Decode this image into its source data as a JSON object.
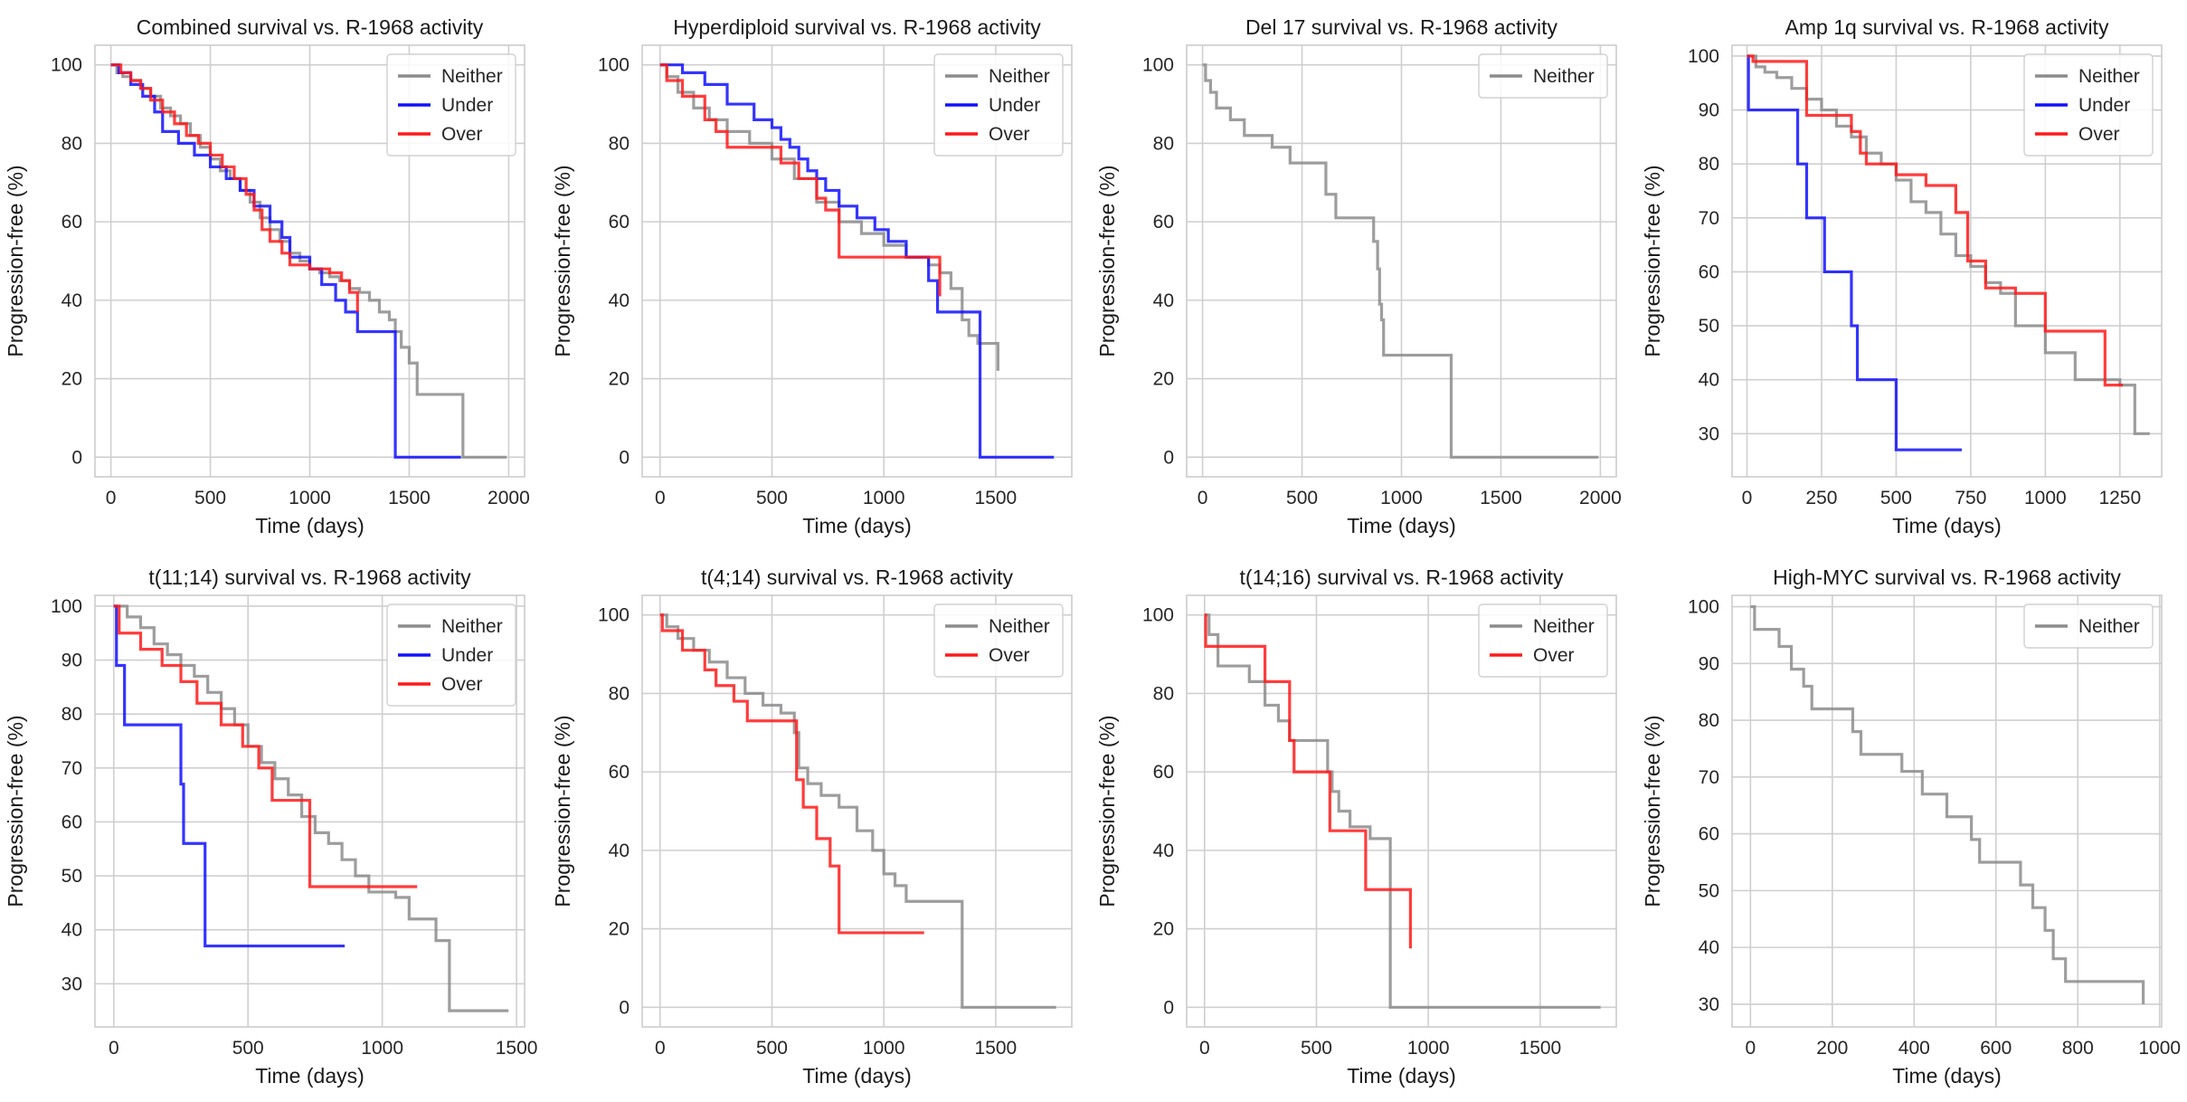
{
  "colors": {
    "Neither": "#8c8c8c",
    "Under": "#1010ff",
    "Over": "#ff1a1a"
  },
  "chart_data": [
    {
      "type": "line",
      "title": "Combined survival vs. R-1968 activity",
      "xlabel": "Time (days)",
      "ylabel": "Progression-free (%)",
      "xlim": [
        -80,
        2080
      ],
      "ylim": [
        -5,
        105
      ],
      "xticks": [
        0,
        500,
        1000,
        1500,
        2000
      ],
      "yticks": [
        0,
        20,
        40,
        60,
        80,
        100
      ],
      "grid": true,
      "legend": "top-right",
      "series": [
        {
          "name": "Neither",
          "x": [
            0,
            30,
            60,
            100,
            150,
            200,
            250,
            300,
            350,
            400,
            450,
            500,
            550,
            600,
            650,
            700,
            750,
            800,
            850,
            900,
            950,
            1000,
            1050,
            1100,
            1150,
            1200,
            1250,
            1300,
            1350,
            1400,
            1430,
            1460,
            1500,
            1540,
            1770,
            1990
          ],
          "y": [
            100,
            98,
            97,
            96,
            94,
            92,
            89,
            87,
            85,
            82,
            79,
            76,
            73,
            71,
            68,
            65,
            61,
            58,
            55,
            52,
            50,
            48,
            47,
            46,
            45,
            43,
            42,
            40,
            37,
            35,
            32,
            28,
            24,
            16,
            0,
            0
          ]
        },
        {
          "name": "Under",
          "x": [
            0,
            40,
            100,
            160,
            220,
            260,
            340,
            420,
            500,
            580,
            650,
            720,
            800,
            860,
            900,
            1000,
            1060,
            1130,
            1180,
            1240,
            1430,
            1760
          ],
          "y": [
            100,
            98,
            95,
            92,
            88,
            83,
            80,
            77,
            74,
            71,
            68,
            64,
            60,
            56,
            51,
            48,
            44,
            40,
            37,
            32,
            0,
            0
          ]
        },
        {
          "name": "Over",
          "x": [
            0,
            50,
            100,
            150,
            200,
            260,
            320,
            380,
            440,
            500,
            560,
            620,
            680,
            720,
            760,
            800,
            860,
            900,
            1000,
            1100,
            1160,
            1200,
            1240
          ],
          "y": [
            100,
            98,
            96,
            94,
            91,
            88,
            85,
            82,
            80,
            77,
            74,
            71,
            67,
            63,
            58,
            55,
            52,
            49,
            48,
            47,
            45,
            42,
            37
          ]
        }
      ]
    },
    {
      "type": "line",
      "title": "Hyperdiploid survival vs. R-1968 activity",
      "xlabel": "Time (days)",
      "ylabel": "Progression-free (%)",
      "xlim": [
        -80,
        1840
      ],
      "ylim": [
        -5,
        105
      ],
      "xticks": [
        0,
        500,
        1000,
        1500
      ],
      "yticks": [
        0,
        20,
        40,
        60,
        80,
        100
      ],
      "grid": true,
      "legend": "top-right",
      "series": [
        {
          "name": "Neither",
          "x": [
            0,
            30,
            80,
            150,
            220,
            300,
            400,
            500,
            600,
            700,
            800,
            900,
            1000,
            1100,
            1150,
            1200,
            1250,
            1300,
            1350,
            1380,
            1420,
            1470,
            1510
          ],
          "y": [
            100,
            97,
            93,
            89,
            86,
            83,
            80,
            76,
            71,
            65,
            60,
            57,
            54,
            51,
            51,
            49,
            47,
            43,
            35,
            31,
            29,
            29,
            22
          ]
        },
        {
          "name": "Under",
          "x": [
            0,
            100,
            200,
            300,
            420,
            500,
            540,
            580,
            620,
            660,
            700,
            740,
            800,
            880,
            960,
            1020,
            1100,
            1200,
            1240,
            1430,
            1760
          ],
          "y": [
            100,
            98,
            95,
            90,
            86,
            84,
            81,
            79,
            76,
            73,
            71,
            68,
            64,
            61,
            58,
            55,
            51,
            45,
            37,
            0,
            0
          ]
        },
        {
          "name": "Over",
          "x": [
            0,
            30,
            100,
            200,
            250,
            300,
            450,
            540,
            620,
            700,
            740,
            800,
            1220,
            1250
          ],
          "y": [
            100,
            96,
            92,
            86,
            83,
            79,
            79,
            75,
            71,
            66,
            63,
            51,
            51,
            41
          ]
        }
      ]
    },
    {
      "type": "line",
      "title": "Del 17 survival vs. R-1968 activity",
      "xlabel": "Time (days)",
      "ylabel": "Progression-free (%)",
      "xlim": [
        -80,
        2080
      ],
      "ylim": [
        -5,
        105
      ],
      "xticks": [
        0,
        500,
        1000,
        1500,
        2000
      ],
      "yticks": [
        0,
        20,
        40,
        60,
        80,
        100
      ],
      "grid": true,
      "legend": "top-right",
      "series": [
        {
          "name": "Neither",
          "x": [
            0,
            15,
            40,
            70,
            140,
            210,
            250,
            350,
            440,
            530,
            620,
            670,
            860,
            880,
            890,
            900,
            910,
            1250,
            1990
          ],
          "y": [
            100,
            96,
            93,
            89,
            86,
            82,
            82,
            79,
            75,
            75,
            67,
            61,
            55,
            48,
            39,
            35,
            26,
            0,
            0
          ]
        }
      ]
    },
    {
      "type": "line",
      "title": "Amp 1q survival vs. R-1968 activity",
      "xlabel": "Time (days)",
      "ylabel": "Progression-free (%)",
      "xlim": [
        -50,
        1390
      ],
      "ylim": [
        22,
        102
      ],
      "xticks": [
        0,
        250,
        500,
        750,
        1000,
        1250
      ],
      "yticks": [
        30,
        40,
        50,
        60,
        70,
        80,
        90,
        100
      ],
      "grid": true,
      "legend": "top-right",
      "series": [
        {
          "name": "Neither",
          "x": [
            0,
            30,
            60,
            100,
            150,
            200,
            250,
            300,
            350,
            400,
            450,
            500,
            550,
            600,
            650,
            700,
            750,
            800,
            850,
            900,
            1000,
            1100,
            1200,
            1250,
            1300,
            1350
          ],
          "y": [
            100,
            98,
            97,
            96,
            94,
            92,
            90,
            87,
            85,
            82,
            80,
            77,
            73,
            71,
            67,
            63,
            61,
            58,
            56,
            50,
            45,
            40,
            40,
            39,
            30,
            30
          ]
        },
        {
          "name": "Under",
          "x": [
            0,
            5,
            170,
            200,
            260,
            350,
            370,
            500,
            720
          ],
          "y": [
            100,
            90,
            80,
            70,
            60,
            50,
            40,
            27,
            27
          ]
        },
        {
          "name": "Over",
          "x": [
            0,
            20,
            200,
            350,
            380,
            400,
            500,
            600,
            700,
            740,
            800,
            900,
            1000,
            1200,
            1260
          ],
          "y": [
            100,
            99,
            89,
            86,
            82,
            80,
            78,
            76,
            71,
            62,
            57,
            56,
            49,
            39,
            39
          ]
        }
      ]
    },
    {
      "type": "line",
      "title": "t(11;14) survival vs. R-1968 activity",
      "xlabel": "Time (days)",
      "ylabel": "Progression-free (%)",
      "xlim": [
        -70,
        1530
      ],
      "ylim": [
        22,
        102
      ],
      "xticks": [
        0,
        500,
        1000,
        1500
      ],
      "yticks": [
        30,
        40,
        50,
        60,
        70,
        80,
        90,
        100
      ],
      "grid": true,
      "legend": "top-right",
      "series": [
        {
          "name": "Neither",
          "x": [
            0,
            50,
            100,
            150,
            200,
            250,
            300,
            350,
            400,
            450,
            500,
            550,
            600,
            650,
            700,
            750,
            800,
            850,
            900,
            950,
            1050,
            1100,
            1200,
            1250,
            1470
          ],
          "y": [
            100,
            98,
            96,
            93,
            91,
            89,
            87,
            84,
            81,
            78,
            74,
            71,
            68,
            65,
            61,
            58,
            56,
            53,
            50,
            47,
            46,
            42,
            38,
            25,
            25
          ]
        },
        {
          "name": "Under",
          "x": [
            0,
            10,
            40,
            100,
            250,
            260,
            340,
            860
          ],
          "y": [
            100,
            89,
            78,
            78,
            67,
            56,
            37,
            37
          ]
        },
        {
          "name": "Over",
          "x": [
            0,
            20,
            100,
            180,
            250,
            310,
            400,
            480,
            540,
            590,
            730,
            1130
          ],
          "y": [
            100,
            95,
            92,
            89,
            86,
            82,
            78,
            74,
            70,
            64,
            48,
            48
          ]
        }
      ]
    },
    {
      "type": "line",
      "title": "t(4;14) survival vs. R-1968 activity",
      "xlabel": "Time (days)",
      "ylabel": "Progression-free (%)",
      "xlim": [
        -80,
        1840
      ],
      "ylim": [
        -5,
        105
      ],
      "xticks": [
        0,
        500,
        1000,
        1500
      ],
      "yticks": [
        0,
        20,
        40,
        60,
        80,
        100
      ],
      "grid": true,
      "legend": "top-right",
      "series": [
        {
          "name": "Neither",
          "x": [
            0,
            30,
            80,
            150,
            220,
            300,
            380,
            460,
            540,
            600,
            620,
            660,
            720,
            800,
            880,
            950,
            1000,
            1050,
            1100,
            1350,
            1770
          ],
          "y": [
            100,
            97,
            94,
            91,
            88,
            84,
            80,
            77,
            75,
            70,
            61,
            57,
            54,
            51,
            45,
            40,
            34,
            31,
            27,
            0,
            0
          ]
        },
        {
          "name": "Over",
          "x": [
            0,
            10,
            100,
            200,
            250,
            330,
            390,
            580,
            610,
            640,
            700,
            760,
            800,
            1180
          ],
          "y": [
            100,
            96,
            91,
            86,
            82,
            78,
            73,
            73,
            58,
            51,
            43,
            36,
            19,
            19
          ]
        }
      ]
    },
    {
      "type": "line",
      "title": "t(14;16) survival vs. R-1968 activity",
      "xlabel": "Time (days)",
      "ylabel": "Progression-free (%)",
      "xlim": [
        -80,
        1840
      ],
      "ylim": [
        -5,
        105
      ],
      "xticks": [
        0,
        500,
        1000,
        1500
      ],
      "yticks": [
        0,
        20,
        40,
        60,
        80,
        100
      ],
      "grid": true,
      "legend": "top-right",
      "series": [
        {
          "name": "Neither",
          "x": [
            0,
            20,
            60,
            120,
            200,
            270,
            330,
            380,
            420,
            550,
            570,
            600,
            650,
            740,
            830,
            1770
          ],
          "y": [
            100,
            95,
            87,
            87,
            83,
            77,
            73,
            68,
            68,
            60,
            55,
            50,
            46,
            43,
            0,
            0
          ]
        },
        {
          "name": "Over",
          "x": [
            0,
            5,
            270,
            380,
            400,
            560,
            720,
            920
          ],
          "y": [
            100,
            92,
            83,
            68,
            60,
            45,
            30,
            15
          ]
        }
      ]
    },
    {
      "type": "line",
      "title": "High-MYC survival vs. R-1968 activity",
      "xlabel": "Time (days)",
      "ylabel": "Progression-free (%)",
      "xlim": [
        -45,
        1005
      ],
      "ylim": [
        26,
        102
      ],
      "xticks": [
        0,
        200,
        400,
        600,
        800,
        1000
      ],
      "yticks": [
        30,
        40,
        50,
        60,
        70,
        80,
        90,
        100
      ],
      "grid": true,
      "legend": "top-right",
      "series": [
        {
          "name": "Neither",
          "x": [
            0,
            10,
            70,
            100,
            130,
            150,
            250,
            270,
            370,
            420,
            480,
            540,
            560,
            660,
            690,
            720,
            740,
            770,
            960
          ],
          "y": [
            100,
            96,
            93,
            89,
            86,
            82,
            78,
            74,
            71,
            67,
            63,
            59,
            55,
            51,
            47,
            43,
            38,
            34,
            30
          ]
        }
      ]
    }
  ]
}
